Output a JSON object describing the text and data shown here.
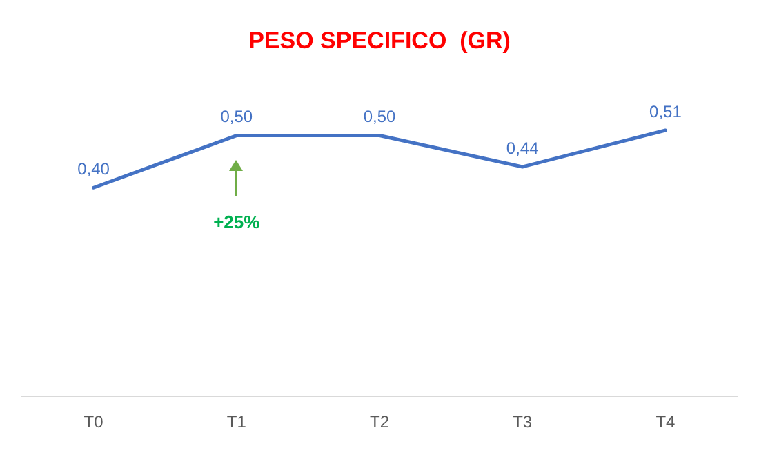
{
  "chart_data": {
    "type": "line",
    "title": "PESO SPECIFICO  (GR)",
    "categories": [
      "T0",
      "T1",
      "T2",
      "T3",
      "T4"
    ],
    "series": [
      {
        "color": "#4472c4",
        "values": [
          0.4,
          0.5,
          0.5,
          0.44,
          0.51
        ],
        "value_labels": [
          "0,40",
          "0,50",
          "0,50",
          "0,44",
          "0,51"
        ]
      }
    ],
    "tick_labels": "x",
    "marker": "none",
    "line_style": "solid",
    "annotations": [
      "+25%"
    ]
  }
}
